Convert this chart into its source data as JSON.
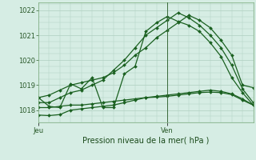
{
  "xlabel": "Pression niveau de la mer( hPa )",
  "ylim": [
    1017.5,
    1022.3
  ],
  "xlim": [
    0,
    20
  ],
  "yticks": [
    1018,
    1019,
    1020,
    1021,
    1022
  ],
  "bg_color": "#d6ede4",
  "grid_color": "#aed0c0",
  "line_color": "#1a6020",
  "ven_x": 12,
  "jeu_x": 0,
  "day_labels": [
    "Jeu",
    "Ven"
  ],
  "series": [
    [
      1018.5,
      1018.6,
      1018.8,
      1019.0,
      1019.1,
      1019.2,
      1019.3,
      1019.5,
      1019.8,
      1020.2,
      1020.5,
      1020.9,
      1021.2,
      1021.5,
      1021.8,
      1021.6,
      1021.3,
      1020.8,
      1020.2,
      1019.0,
      1018.9
    ],
    [
      1018.3,
      1018.3,
      1018.5,
      1018.7,
      1018.8,
      1019.0,
      1019.2,
      1019.6,
      1020.0,
      1020.5,
      1021.0,
      1021.3,
      1021.6,
      1021.9,
      1021.7,
      1021.4,
      1021.0,
      1020.5,
      1019.8,
      1018.85,
      1018.3
    ],
    [
      1017.8,
      1017.78,
      1017.82,
      1018.0,
      1018.05,
      1018.1,
      1018.15,
      1018.2,
      1018.3,
      1018.4,
      1018.5,
      1018.55,
      1018.6,
      1018.65,
      1018.7,
      1018.75,
      1018.8,
      1018.75,
      1018.65,
      1018.45,
      1018.2
    ],
    [
      1018.1,
      1018.1,
      1018.15,
      1018.2,
      1018.2,
      1018.25,
      1018.3,
      1018.35,
      1018.4,
      1018.45,
      1018.5,
      1018.52,
      1018.55,
      1018.6,
      1018.65,
      1018.7,
      1018.72,
      1018.7,
      1018.62,
      1018.4,
      1018.2
    ],
    [
      1018.5,
      1018.15,
      1018.1,
      1019.05,
      1018.85,
      1019.3,
      1018.1,
      1018.1,
      1019.45,
      1019.75,
      1021.15,
      1021.5,
      1021.75,
      1021.55,
      1021.4,
      1021.15,
      1020.7,
      1020.15,
      1019.3,
      1018.7,
      1018.2
    ]
  ],
  "marker": "D",
  "markersize": 2.0,
  "linewidth": 0.9,
  "label_fontsize": 6,
  "xlabel_fontsize": 7
}
